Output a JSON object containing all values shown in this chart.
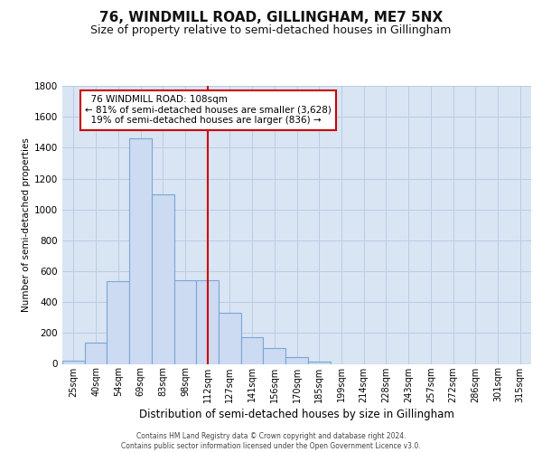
{
  "title": "76, WINDMILL ROAD, GILLINGHAM, ME7 5NX",
  "subtitle": "Size of property relative to semi-detached houses in Gillingham",
  "xlabel": "Distribution of semi-detached houses by size in Gillingham",
  "ylabel": "Number of semi-detached properties",
  "categories": [
    "25sqm",
    "40sqm",
    "54sqm",
    "69sqm",
    "83sqm",
    "98sqm",
    "112sqm",
    "127sqm",
    "141sqm",
    "156sqm",
    "170sqm",
    "185sqm",
    "199sqm",
    "214sqm",
    "228sqm",
    "243sqm",
    "257sqm",
    "272sqm",
    "286sqm",
    "301sqm",
    "315sqm"
  ],
  "values": [
    20,
    140,
    535,
    1460,
    1100,
    540,
    540,
    330,
    175,
    105,
    45,
    15,
    0,
    0,
    0,
    0,
    0,
    0,
    0,
    0,
    0
  ],
  "bar_color": "#ccdaf2",
  "bar_edge_color": "#7aa6d4",
  "property_label": "76 WINDMILL ROAD: 108sqm",
  "pct_smaller": 81,
  "pct_larger": 19,
  "count_smaller": 3628,
  "count_larger": 836,
  "vline_color": "#cc0000",
  "vline_x_index": 6.0,
  "annotation_box_color": "#ffffff",
  "annotation_box_edge": "#cc0000",
  "ylim": [
    0,
    1800
  ],
  "yticks": [
    0,
    200,
    400,
    600,
    800,
    1000,
    1200,
    1400,
    1600,
    1800
  ],
  "grid_color": "#b8cce4",
  "bg_color": "#d9e5f3",
  "title_fontsize": 11,
  "subtitle_fontsize": 9,
  "footer_line1": "Contains HM Land Registry data © Crown copyright and database right 2024.",
  "footer_line2": "Contains public sector information licensed under the Open Government Licence v3.0."
}
